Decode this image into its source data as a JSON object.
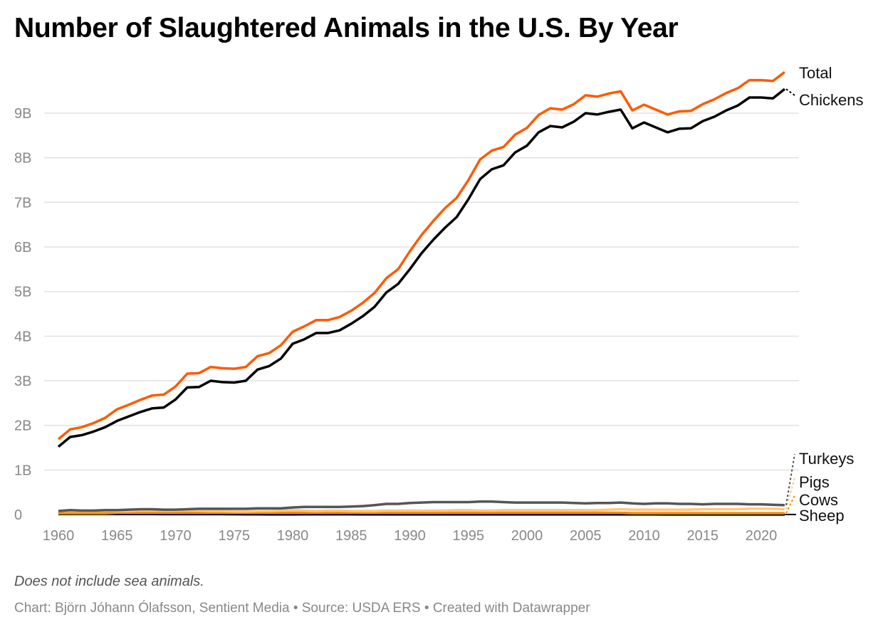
{
  "title": "Number of Slaughtered Animals in the U.S. By Year",
  "note": "Does not include sea animals.",
  "credits": "Chart: Björn Jóhann Ólafsson, Sentient Media • Source: USDA ERS • Created with Datawrapper",
  "chart_data": {
    "type": "line",
    "title": "Number of Slaughtered Animals in the U.S. By Year",
    "xlabel": "",
    "ylabel": "",
    "xlim": [
      1960,
      2022
    ],
    "ylim": [
      0,
      9.9
    ],
    "unit": "billions",
    "grid": true,
    "legend": "direct labels at right",
    "x_ticks": [
      1960,
      1965,
      1970,
      1975,
      1980,
      1985,
      1990,
      1995,
      2000,
      2005,
      2010,
      2015,
      2020
    ],
    "x_tick_labels": [
      "1960",
      "1965",
      "1970",
      "1975",
      "1980",
      "1985",
      "1990",
      "1995",
      "2000",
      "2005",
      "2010",
      "2015",
      "2020"
    ],
    "y_ticks": [
      0,
      1,
      2,
      3,
      4,
      5,
      6,
      7,
      8,
      9
    ],
    "y_tick_labels": [
      "0",
      "1B",
      "2B",
      "3B",
      "4B",
      "5B",
      "6B",
      "7B",
      "8B",
      "9B"
    ],
    "x_start": 1960,
    "series": [
      {
        "name": "Total",
        "color": "#ff5a00",
        "values": [
          1.69,
          1.91,
          1.96,
          2.05,
          2.17,
          2.36,
          2.46,
          2.57,
          2.67,
          2.69,
          2.87,
          3.16,
          3.17,
          3.31,
          3.28,
          3.27,
          3.31,
          3.55,
          3.62,
          3.8,
          4.1,
          4.22,
          4.36,
          4.36,
          4.43,
          4.57,
          4.75,
          4.97,
          5.3,
          5.5,
          5.9,
          6.27,
          6.58,
          6.87,
          7.1,
          7.5,
          7.96,
          8.16,
          8.24,
          8.52,
          8.67,
          8.96,
          9.11,
          9.08,
          9.2,
          9.4,
          9.37,
          9.44,
          9.49,
          9.06,
          9.19,
          9.08,
          8.97,
          9.04,
          9.05,
          9.2,
          9.31,
          9.45,
          9.56,
          9.74,
          9.74,
          9.72,
          9.92
        ]
      },
      {
        "name": "Chickens",
        "color": "#000000",
        "values": [
          1.52,
          1.74,
          1.78,
          1.86,
          1.96,
          2.1,
          2.2,
          2.3,
          2.38,
          2.4,
          2.58,
          2.85,
          2.86,
          3.0,
          2.97,
          2.96,
          3.0,
          3.25,
          3.33,
          3.5,
          3.83,
          3.93,
          4.07,
          4.07,
          4.13,
          4.28,
          4.45,
          4.66,
          4.98,
          5.17,
          5.5,
          5.86,
          6.16,
          6.43,
          6.67,
          7.07,
          7.52,
          7.74,
          7.83,
          8.12,
          8.27,
          8.57,
          8.71,
          8.68,
          8.81,
          9.0,
          8.97,
          9.03,
          9.08,
          8.66,
          8.79,
          8.68,
          8.57,
          8.65,
          8.66,
          8.82,
          8.92,
          9.06,
          9.17,
          9.35,
          9.35,
          9.33,
          9.54
        ]
      },
      {
        "name": "Turkeys",
        "color": "#555555",
        "values": [
          0.08,
          0.1,
          0.09,
          0.09,
          0.1,
          0.1,
          0.11,
          0.12,
          0.12,
          0.11,
          0.11,
          0.12,
          0.13,
          0.13,
          0.13,
          0.13,
          0.13,
          0.14,
          0.14,
          0.14,
          0.16,
          0.17,
          0.17,
          0.17,
          0.17,
          0.18,
          0.19,
          0.21,
          0.24,
          0.24,
          0.26,
          0.27,
          0.28,
          0.28,
          0.28,
          0.28,
          0.29,
          0.29,
          0.28,
          0.27,
          0.27,
          0.27,
          0.27,
          0.27,
          0.26,
          0.25,
          0.26,
          0.26,
          0.27,
          0.25,
          0.24,
          0.25,
          0.25,
          0.24,
          0.24,
          0.23,
          0.24,
          0.24,
          0.24,
          0.23,
          0.23,
          0.22,
          0.21
        ]
      },
      {
        "name": "Pigs",
        "color": "#ffc77a",
        "values": [
          0.08,
          0.08,
          0.08,
          0.08,
          0.09,
          0.08,
          0.08,
          0.09,
          0.09,
          0.09,
          0.09,
          0.1,
          0.09,
          0.08,
          0.08,
          0.07,
          0.07,
          0.08,
          0.08,
          0.09,
          0.1,
          0.09,
          0.08,
          0.09,
          0.09,
          0.08,
          0.08,
          0.08,
          0.09,
          0.09,
          0.09,
          0.09,
          0.09,
          0.09,
          0.1,
          0.1,
          0.09,
          0.09,
          0.1,
          0.1,
          0.1,
          0.1,
          0.1,
          0.1,
          0.1,
          0.1,
          0.1,
          0.11,
          0.12,
          0.11,
          0.11,
          0.11,
          0.11,
          0.11,
          0.11,
          0.12,
          0.12,
          0.12,
          0.12,
          0.13,
          0.13,
          0.13,
          0.12
        ]
      },
      {
        "name": "Cows",
        "color": "#f08c00",
        "values": [
          0.03,
          0.03,
          0.03,
          0.03,
          0.03,
          0.04,
          0.04,
          0.04,
          0.04,
          0.04,
          0.04,
          0.04,
          0.04,
          0.04,
          0.04,
          0.04,
          0.04,
          0.04,
          0.04,
          0.04,
          0.04,
          0.04,
          0.04,
          0.04,
          0.04,
          0.04,
          0.04,
          0.04,
          0.04,
          0.04,
          0.04,
          0.04,
          0.04,
          0.04,
          0.04,
          0.04,
          0.04,
          0.04,
          0.04,
          0.04,
          0.04,
          0.04,
          0.04,
          0.04,
          0.04,
          0.04,
          0.04,
          0.04,
          0.04,
          0.03,
          0.03,
          0.03,
          0.03,
          0.03,
          0.03,
          0.03,
          0.03,
          0.03,
          0.03,
          0.03,
          0.03,
          0.03,
          0.03
        ]
      },
      {
        "name": "Sheep",
        "color": "#000000",
        "values": [
          0.015,
          0.015,
          0.015,
          0.015,
          0.014,
          0.013,
          0.013,
          0.012,
          0.011,
          0.01,
          0.01,
          0.01,
          0.01,
          0.01,
          0.009,
          0.008,
          0.007,
          0.006,
          0.005,
          0.005,
          0.005,
          0.006,
          0.006,
          0.006,
          0.006,
          0.006,
          0.005,
          0.005,
          0.005,
          0.005,
          0.005,
          0.005,
          0.005,
          0.005,
          0.005,
          0.005,
          0.004,
          0.004,
          0.004,
          0.004,
          0.003,
          0.003,
          0.003,
          0.003,
          0.003,
          0.003,
          0.003,
          0.003,
          0.003,
          0.003,
          0.003,
          0.003,
          0.002,
          0.002,
          0.002,
          0.002,
          0.002,
          0.002,
          0.002,
          0.002,
          0.002,
          0.002,
          0.002
        ]
      }
    ]
  }
}
